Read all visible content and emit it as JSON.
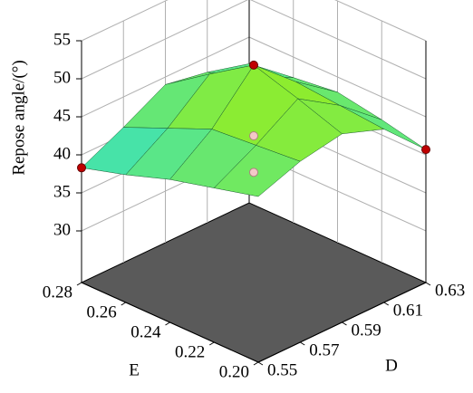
{
  "chart_data": {
    "type": "surface",
    "xlabel": "D",
    "ylabel": "E",
    "zlabel": "Repose angle/(°)",
    "xlim": [
      0.55,
      0.63
    ],
    "xticks": [
      0.55,
      0.57,
      0.59,
      0.61,
      0.63
    ],
    "ylim": [
      0.2,
      0.28
    ],
    "yticks": [
      {
        "value": 0.2,
        "label": "0.20"
      },
      0.22,
      0.24,
      0.26,
      0.28
    ],
    "zlim": [
      30,
      55
    ],
    "zticks": [
      30,
      35,
      40,
      45,
      50,
      55
    ],
    "x": [
      0.55,
      0.57,
      0.59,
      0.61,
      0.63
    ],
    "y": [
      0.2,
      0.22,
      0.24,
      0.26,
      0.28
    ],
    "z": [
      [
        45,
        47,
        48,
        46,
        40.7
      ],
      [
        43.5,
        46.5,
        50,
        46.5,
        42
      ],
      [
        42,
        46,
        51.8,
        47,
        43
      ],
      [
        40,
        43.5,
        48,
        45,
        42.3
      ],
      [
        38.3,
        41,
        44,
        43,
        41.5
      ]
    ],
    "points": [
      {
        "x": 0.59,
        "y": 0.24,
        "z": 51.8
      },
      {
        "x": 0.59,
        "y": 0.24,
        "z": 42.5
      },
      {
        "x": 0.59,
        "y": 0.24,
        "z": 37.7
      },
      {
        "x": 0.55,
        "y": 0.28,
        "z": 38.3
      },
      {
        "x": 0.63,
        "y": 0.2,
        "z": 40.7
      }
    ],
    "point_color": "#c00000",
    "hidden_point_color": "#f4c8c8",
    "colors": [
      "#30e0d0",
      "#a8f000"
    ],
    "floor_color": "#5a5a5a"
  }
}
